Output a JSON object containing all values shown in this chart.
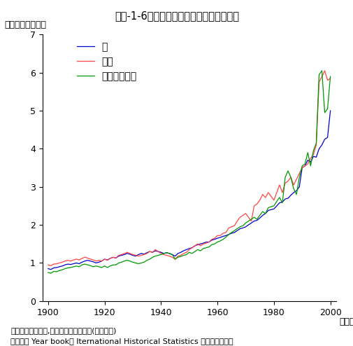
{
  "title": "第１-1-6図　世界の三大穀物生産量の推移",
  "ylabel": "生産量（億トン）",
  "xlabel_unit": "（年）",
  "footnote1": "資料：　小宮山宏,「地球持続の技術」(岩波新書)",
  "footnote2": "（ＦＡＯ Year book， Iternational Historical Statistics をもとに作成）",
  "legend_labels": [
    "米",
    "小麦",
    "トウモロコシ"
  ],
  "line_colors": [
    "#0000cc",
    "#ff4444",
    "#009900"
  ],
  "xlim": [
    1898,
    2002
  ],
  "ylim": [
    0,
    7
  ],
  "yticks": [
    0,
    1,
    2,
    3,
    4,
    5,
    6,
    7
  ],
  "xticks": [
    1900,
    1920,
    1940,
    1960,
    1980,
    2000
  ],
  "years": [
    1900,
    1901,
    1902,
    1903,
    1904,
    1905,
    1906,
    1907,
    1908,
    1909,
    1910,
    1911,
    1912,
    1913,
    1914,
    1915,
    1916,
    1917,
    1918,
    1919,
    1920,
    1921,
    1922,
    1923,
    1924,
    1925,
    1926,
    1927,
    1928,
    1929,
    1930,
    1931,
    1932,
    1933,
    1934,
    1935,
    1936,
    1937,
    1938,
    1939,
    1940,
    1941,
    1942,
    1943,
    1944,
    1945,
    1946,
    1947,
    1948,
    1949,
    1950,
    1951,
    1952,
    1953,
    1954,
    1955,
    1956,
    1957,
    1958,
    1959,
    1960,
    1961,
    1962,
    1963,
    1964,
    1965,
    1966,
    1967,
    1968,
    1969,
    1970,
    1971,
    1972,
    1973,
    1974,
    1975,
    1976,
    1977,
    1978,
    1979,
    1980,
    1981,
    1982,
    1983,
    1984,
    1985,
    1986,
    1987,
    1988,
    1989,
    1990,
    1991,
    1992,
    1993,
    1994,
    1995,
    1996,
    1997,
    1998,
    1999,
    2000
  ],
  "rice": [
    0.85,
    0.83,
    0.87,
    0.88,
    0.9,
    0.92,
    0.95,
    0.97,
    0.96,
    0.98,
    1.0,
    0.98,
    1.02,
    1.05,
    1.07,
    1.05,
    1.03,
    1.0,
    1.02,
    1.05,
    1.1,
    1.08,
    1.12,
    1.15,
    1.13,
    1.18,
    1.2,
    1.22,
    1.25,
    1.23,
    1.2,
    1.18,
    1.22,
    1.25,
    1.23,
    1.27,
    1.3,
    1.28,
    1.32,
    1.3,
    1.28,
    1.25,
    1.27,
    1.25,
    1.22,
    1.18,
    1.25,
    1.28,
    1.32,
    1.35,
    1.38,
    1.4,
    1.45,
    1.48,
    1.5,
    1.52,
    1.55,
    1.55,
    1.6,
    1.62,
    1.65,
    1.67,
    1.7,
    1.72,
    1.75,
    1.78,
    1.8,
    1.85,
    1.9,
    1.92,
    1.95,
    2.0,
    2.05,
    2.1,
    2.12,
    2.18,
    2.25,
    2.3,
    2.38,
    2.4,
    2.42,
    2.5,
    2.58,
    2.6,
    2.68,
    2.7,
    2.78,
    2.85,
    2.9,
    3.0,
    3.5,
    3.55,
    3.7,
    3.65,
    3.8,
    3.78,
    4.0,
    4.1,
    4.25,
    4.3,
    5.0
  ],
  "wheat": [
    0.95,
    0.93,
    0.97,
    0.98,
    1.0,
    1.02,
    1.05,
    1.07,
    1.05,
    1.08,
    1.1,
    1.08,
    1.12,
    1.15,
    1.13,
    1.1,
    1.08,
    1.05,
    1.07,
    1.05,
    1.1,
    1.07,
    1.12,
    1.15,
    1.13,
    1.2,
    1.22,
    1.25,
    1.28,
    1.25,
    1.22,
    1.2,
    1.18,
    1.2,
    1.22,
    1.25,
    1.3,
    1.28,
    1.35,
    1.3,
    1.25,
    1.22,
    1.2,
    1.18,
    1.15,
    1.1,
    1.18,
    1.2,
    1.25,
    1.28,
    1.35,
    1.4,
    1.45,
    1.5,
    1.45,
    1.5,
    1.52,
    1.55,
    1.62,
    1.65,
    1.72,
    1.72,
    1.78,
    1.8,
    1.92,
    1.95,
    1.98,
    2.1,
    2.2,
    2.25,
    2.3,
    2.2,
    2.1,
    2.5,
    2.55,
    2.65,
    2.8,
    2.72,
    2.85,
    2.75,
    2.65,
    2.85,
    3.05,
    2.85,
    3.1,
    3.15,
    3.25,
    3.05,
    3.2,
    3.35,
    3.5,
    3.55,
    3.6,
    3.75,
    3.85,
    4.1,
    5.75,
    5.9,
    6.05,
    5.8,
    5.85
  ],
  "corn": [
    0.75,
    0.73,
    0.78,
    0.77,
    0.8,
    0.82,
    0.85,
    0.87,
    0.88,
    0.9,
    0.92,
    0.9,
    0.95,
    0.97,
    0.95,
    0.93,
    0.9,
    0.92,
    0.9,
    0.88,
    0.92,
    0.88,
    0.92,
    0.95,
    0.95,
    1.0,
    1.02,
    1.05,
    1.07,
    1.05,
    1.02,
    1.0,
    0.98,
    1.0,
    1.02,
    1.07,
    1.1,
    1.15,
    1.18,
    1.2,
    1.22,
    1.25,
    1.27,
    1.25,
    1.22,
    1.1,
    1.15,
    1.17,
    1.2,
    1.22,
    1.28,
    1.25,
    1.3,
    1.35,
    1.32,
    1.38,
    1.4,
    1.42,
    1.48,
    1.5,
    1.55,
    1.58,
    1.62,
    1.68,
    1.75,
    1.8,
    1.85,
    1.9,
    1.95,
    1.98,
    2.05,
    2.1,
    2.15,
    2.2,
    2.15,
    2.25,
    2.35,
    2.3,
    2.45,
    2.48,
    2.5,
    2.62,
    2.72,
    2.58,
    3.25,
    3.42,
    3.25,
    2.95,
    2.8,
    3.25,
    3.55,
    3.6,
    3.9,
    3.55,
    3.95,
    4.15,
    5.95,
    6.05,
    4.95,
    5.05,
    5.9
  ]
}
